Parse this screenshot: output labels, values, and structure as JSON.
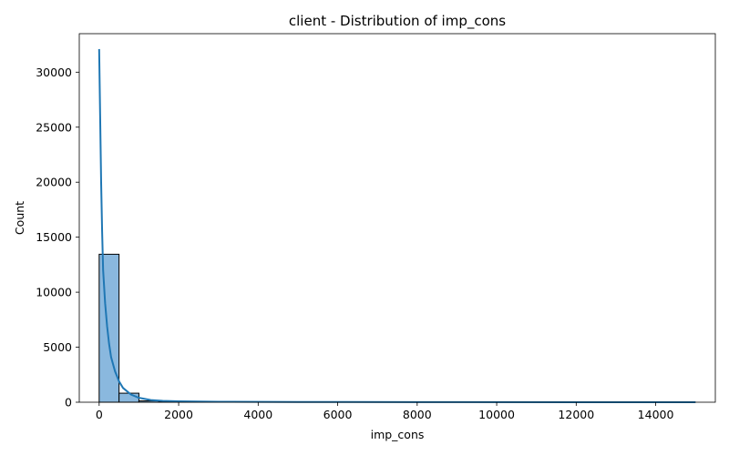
{
  "chart_data": {
    "type": "bar",
    "title": "client - Distribution of imp_cons",
    "xlabel": "imp_cons",
    "ylabel": "Count",
    "xlim": [
      -500,
      15500
    ],
    "ylim": [
      0,
      33500
    ],
    "xticks": [
      0,
      2000,
      4000,
      6000,
      8000,
      10000,
      12000,
      14000
    ],
    "yticks": [
      0,
      5000,
      10000,
      15000,
      20000,
      25000,
      30000
    ],
    "grid": false,
    "legend": "none",
    "bar_color": "#8ab8de",
    "bar_edge_color": "#000000",
    "kde_color": "#1f77b4",
    "bins": [
      {
        "x0": 0,
        "x1": 500,
        "count": 13450
      },
      {
        "x0": 500,
        "x1": 1000,
        "count": 820
      },
      {
        "x0": 1000,
        "x1": 1500,
        "count": 120
      },
      {
        "x0": 1500,
        "x1": 2000,
        "count": 50
      },
      {
        "x0": 2000,
        "x1": 2500,
        "count": 30
      },
      {
        "x0": 2500,
        "x1": 3000,
        "count": 20
      },
      {
        "x0": 3000,
        "x1": 3500,
        "count": 10
      },
      {
        "x0": 3500,
        "x1": 4000,
        "count": 8
      },
      {
        "x0": 4000,
        "x1": 4500,
        "count": 6
      },
      {
        "x0": 4500,
        "x1": 5000,
        "count": 5
      },
      {
        "x0": 5000,
        "x1": 5500,
        "count": 4
      },
      {
        "x0": 5500,
        "x1": 6000,
        "count": 3
      },
      {
        "x0": 6000,
        "x1": 6500,
        "count": 3
      },
      {
        "x0": 6500,
        "x1": 7000,
        "count": 2
      },
      {
        "x0": 7000,
        "x1": 7500,
        "count": 2
      },
      {
        "x0": 7500,
        "x1": 8000,
        "count": 2
      },
      {
        "x0": 8000,
        "x1": 8500,
        "count": 1
      },
      {
        "x0": 8500,
        "x1": 9000,
        "count": 1
      },
      {
        "x0": 9000,
        "x1": 9500,
        "count": 1
      },
      {
        "x0": 9500,
        "x1": 10000,
        "count": 1
      },
      {
        "x0": 10000,
        "x1": 10500,
        "count": 1
      },
      {
        "x0": 10500,
        "x1": 11000,
        "count": 1
      },
      {
        "x0": 11000,
        "x1": 11500,
        "count": 1
      },
      {
        "x0": 11500,
        "x1": 12000,
        "count": 1
      },
      {
        "x0": 12000,
        "x1": 12500,
        "count": 1
      },
      {
        "x0": 12500,
        "x1": 13000,
        "count": 1
      },
      {
        "x0": 13000,
        "x1": 13500,
        "count": 1
      },
      {
        "x0": 13500,
        "x1": 14000,
        "count": 1
      },
      {
        "x0": 14000,
        "x1": 14500,
        "count": 1
      },
      {
        "x0": 14500,
        "x1": 15000,
        "count": 1
      }
    ],
    "kde": {
      "x": [
        0,
        25,
        50,
        75,
        100,
        150,
        200,
        250,
        300,
        400,
        500,
        600,
        800,
        1000,
        1300,
        1600,
        2000,
        3000,
        5000,
        8000,
        12000,
        15000
      ],
      "y": [
        32100,
        26000,
        20000,
        15500,
        12000,
        9000,
        6900,
        5300,
        4100,
        2800,
        1900,
        1300,
        700,
        400,
        200,
        120,
        80,
        40,
        20,
        10,
        5,
        0
      ]
    }
  }
}
